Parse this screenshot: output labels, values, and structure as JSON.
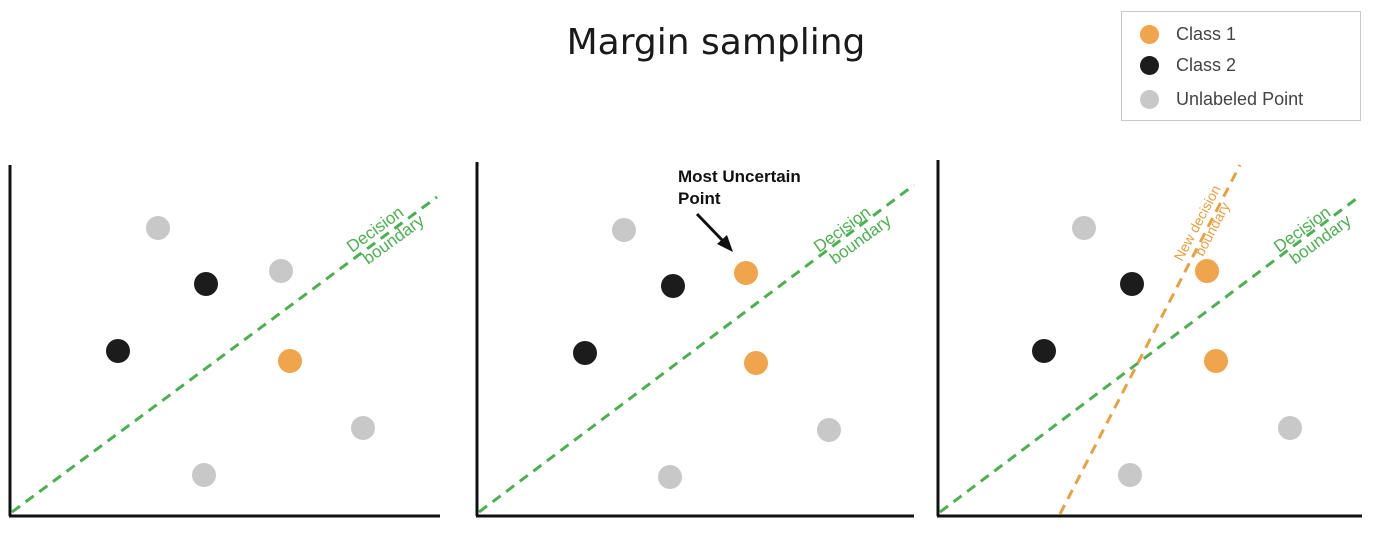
{
  "title": "Margin sampling",
  "legend": {
    "items": [
      {
        "label": "Class 1",
        "color": "#F0A44C"
      },
      {
        "label": "Class 2",
        "color": "#1c1c1c"
      },
      {
        "label": "Unlabeled Point",
        "color": "#C8C8C8"
      }
    ]
  },
  "colors": {
    "class1": "#F0A44C",
    "class2": "#1c1c1c",
    "unlabeled": "#C8C8C8",
    "boundary": "#4CAF50",
    "new_boundary": "#E8A045"
  },
  "panels": [
    {
      "boundary_label": [
        "Decision",
        "boundary"
      ]
    },
    {
      "boundary_label": [
        "Decision",
        "boundary"
      ],
      "annotation": [
        "Most Uncertain",
        "Point"
      ]
    },
    {
      "boundary_label": [
        "Decision",
        "boundary"
      ],
      "new_boundary_label": [
        "New decision",
        "boundary"
      ]
    }
  ]
}
